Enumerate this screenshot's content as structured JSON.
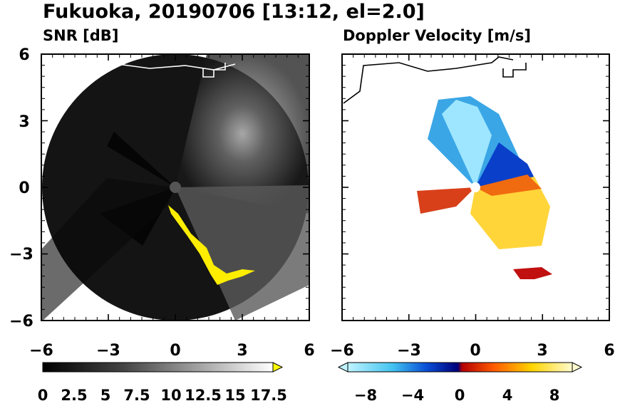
{
  "title": "Fukuoka, 20190706 [13:12, el=2.0]",
  "chart_data": [
    {
      "type": "heatmap",
      "title": "SNR [dB]",
      "xlabel": "",
      "ylabel": "",
      "xlim": [
        -6,
        6
      ],
      "ylim": [
        -6,
        6
      ],
      "xticks": [
        "−6",
        "−3",
        "0",
        "3",
        "6"
      ],
      "yticks": [
        "6",
        "3",
        "0",
        "−3",
        "−6"
      ],
      "colorbar": {
        "labels": [
          "0",
          "2.5",
          "5",
          "7.5",
          "10",
          "12.5",
          "15",
          "17.5"
        ],
        "range": [
          0,
          18.5
        ],
        "extend": "max",
        "colors": [
          "#000000",
          "#ffffff",
          "#ffff00"
        ]
      }
    },
    {
      "type": "heatmap",
      "title": "Doppler Velocity [m/s]",
      "xlabel": "",
      "ylabel": "",
      "xlim": [
        -6,
        6
      ],
      "ylim": [
        -6,
        6
      ],
      "xticks": [
        "−6",
        "−3",
        "0",
        "3",
        "6"
      ],
      "yticks": [],
      "colorbar": {
        "labels": [
          "−8",
          "−4",
          "0",
          "4",
          "8"
        ],
        "range": [
          -10,
          10
        ],
        "extend": "both",
        "colors": [
          "#bff4ff",
          "#43c3f0",
          "#0a4fd6",
          "#00007a",
          "#b50000",
          "#ff5a00",
          "#ffd400",
          "#fffbd0"
        ]
      }
    }
  ]
}
